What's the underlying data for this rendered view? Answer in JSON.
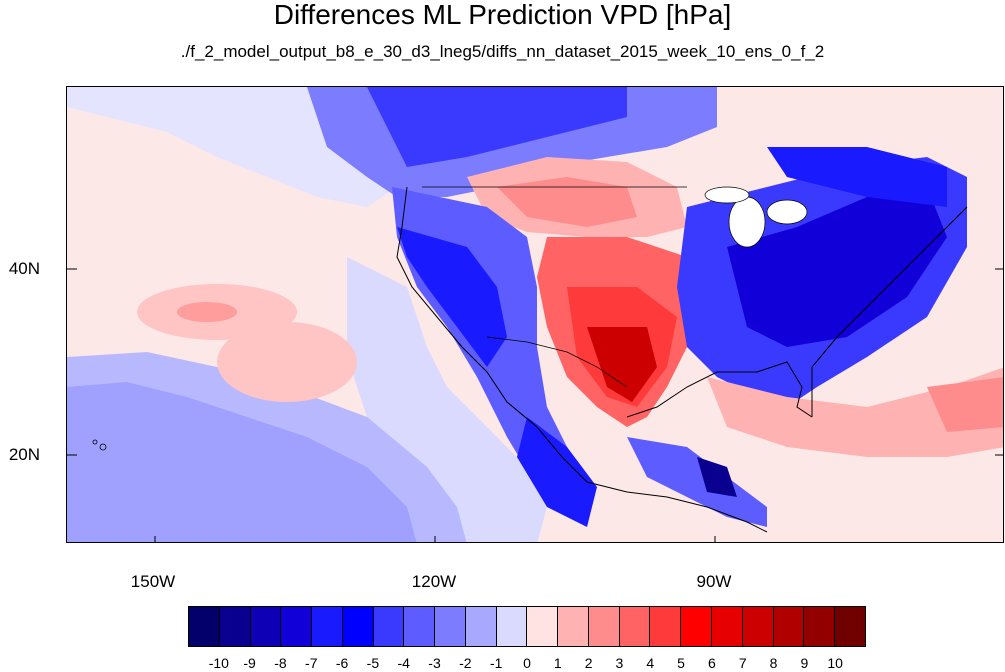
{
  "title": "Differences ML Prediction VPD [hPa]",
  "subtitle": "./f_2_model_output_b8_e_30_d3_lneg5/diffs_nn_dataset_2015_week_10_ens_0_f_2",
  "map": {
    "lat_labels": [
      "40N",
      "20N"
    ],
    "lon_labels": [
      "150W",
      "120W",
      "90W"
    ]
  },
  "colorbar": {
    "colors": [
      "#03006b",
      "#0a008f",
      "#0e00b4",
      "#1200d9",
      "#1a1aff",
      "#0000ff",
      "#3a3aff",
      "#5c5cff",
      "#7c7cff",
      "#a8a8ff",
      "#dadaff",
      "#ffe2e2",
      "#ffb2b2",
      "#ff8c8c",
      "#ff6363",
      "#ff3a3a",
      "#ff0000",
      "#e60000",
      "#cc0000",
      "#b00000",
      "#930000",
      "#700000"
    ],
    "labels": [
      "-10",
      "-9",
      "-8",
      "-7",
      "-6",
      "-5",
      "-4",
      "-3",
      "-2",
      "-1",
      "0",
      "1",
      "2",
      "3",
      "4",
      "5",
      "6",
      "7",
      "8",
      "9",
      "10"
    ]
  }
}
